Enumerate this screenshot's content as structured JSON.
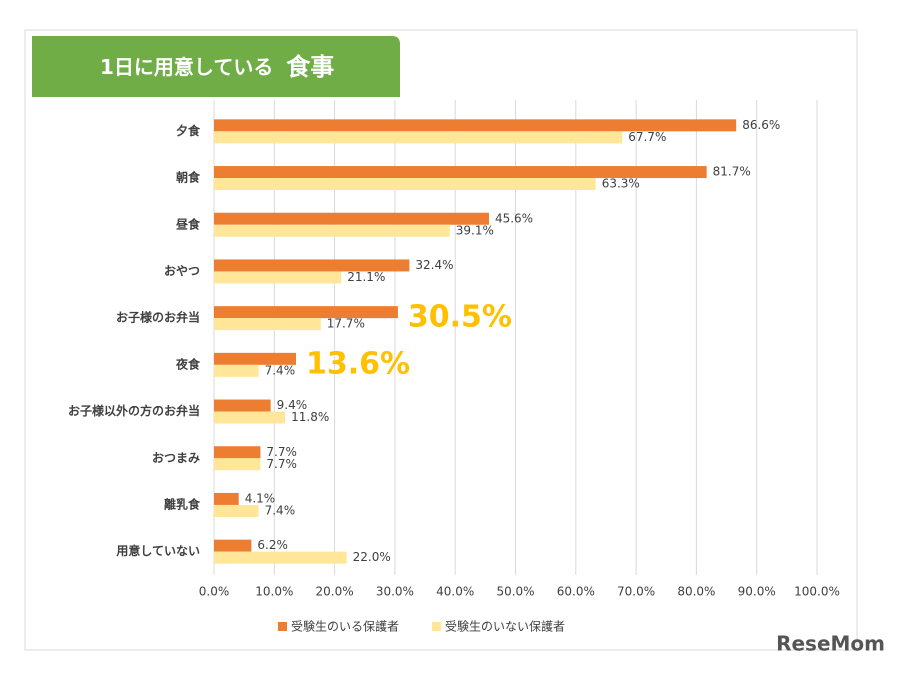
{
  "chart_data": {
    "type": "hbar",
    "title": "1日に用意している",
    "title_emphasis": "食事",
    "categories": [
      "夕食",
      "朝食",
      "昼食",
      "おやつ",
      "お子様のお弁当",
      "夜食",
      "お子様以外の方のお弁当",
      "おつまみ",
      "離乳食",
      "用意していない"
    ],
    "series": [
      {
        "name": "受験生のいる保護者",
        "color": "#ED7D31",
        "values": [
          86.6,
          81.7,
          45.6,
          32.4,
          30.5,
          13.6,
          9.4,
          7.7,
          4.1,
          6.2
        ],
        "value_labels": [
          "86.6%",
          "81.7%",
          "45.6%",
          "32.4%",
          "30.5%",
          "13.6%",
          "9.4%",
          "7.7%",
          "4.1%",
          "6.2%"
        ]
      },
      {
        "name": "受験生のいない保護者",
        "color": "#FFE699",
        "values": [
          67.7,
          63.3,
          39.1,
          21.1,
          17.7,
          7.4,
          11.8,
          7.7,
          7.4,
          22.0
        ],
        "value_labels": [
          "67.7%",
          "63.3%",
          "39.1%",
          "21.1%",
          "17.7%",
          "7.4%",
          "11.8%",
          "7.7%",
          "7.4%",
          "22.0%"
        ]
      }
    ],
    "highlight": [
      4,
      5
    ],
    "highlight_color": "#FFC000",
    "xlim": [
      0,
      100
    ],
    "xticks": [
      {
        "value": 0,
        "label": "0.0%"
      },
      {
        "value": 10,
        "label": "10.0%"
      },
      {
        "value": 20,
        "label": "20.0%"
      },
      {
        "value": 30,
        "label": "30.0%"
      },
      {
        "value": 40,
        "label": "40.0%"
      },
      {
        "value": 50,
        "label": "50.0%"
      },
      {
        "value": 60,
        "label": "60.0%"
      },
      {
        "value": 70,
        "label": "70.0%"
      },
      {
        "value": 80,
        "label": "80.0%"
      },
      {
        "value": 90,
        "label": "90.0%"
      },
      {
        "value": 100,
        "label": "100.0%"
      }
    ],
    "grid": true,
    "legend": "bottom",
    "watermark": "ReseMom"
  }
}
